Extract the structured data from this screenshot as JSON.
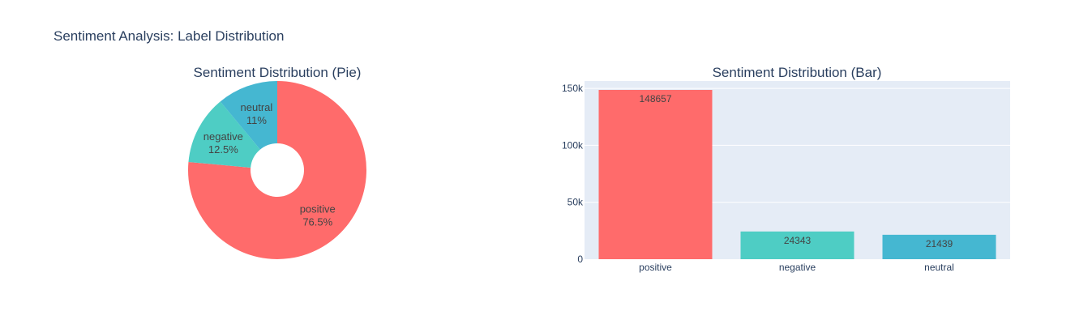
{
  "figure": {
    "title": "Sentiment Analysis: Label Distribution",
    "background": "#ffffff",
    "text_color": "#2a3f5f",
    "plot_bg": "#e5ecf6"
  },
  "chart_data": [
    {
      "type": "pie",
      "title": "Sentiment Distribution (Pie)",
      "hole": 0.3,
      "slices": [
        {
          "label": "positive",
          "value": 148657,
          "percent_label": "76.5%",
          "color": "#ff6b6b"
        },
        {
          "label": "negative",
          "value": 24343,
          "percent_label": "12.5%",
          "color": "#4ecdc4"
        },
        {
          "label": "neutral",
          "value": 21439,
          "percent_label": "11%",
          "color": "#45b7d1"
        }
      ]
    },
    {
      "type": "bar",
      "title": "Sentiment Distribution (Bar)",
      "categories": [
        "positive",
        "negative",
        "neutral"
      ],
      "values": [
        148657,
        24343,
        21439
      ],
      "data_labels": [
        "148657",
        "24343",
        "21439"
      ],
      "colors": [
        "#ff6b6b",
        "#4ecdc4",
        "#45b7d1"
      ],
      "ylim": [
        0,
        156481
      ],
      "yticks": [
        {
          "value": 0,
          "label": "0"
        },
        {
          "value": 50000,
          "label": "50k"
        },
        {
          "value": 100000,
          "label": "100k"
        },
        {
          "value": 150000,
          "label": "150k"
        }
      ],
      "grid": true
    }
  ]
}
